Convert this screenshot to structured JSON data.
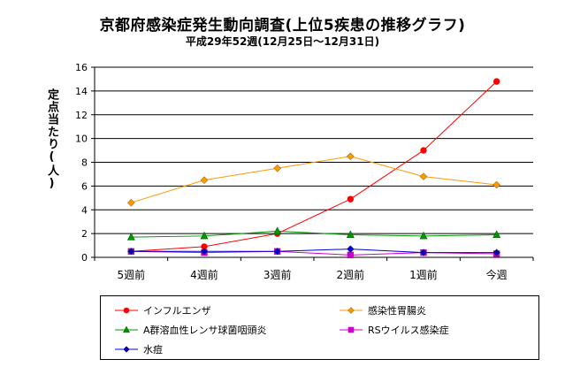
{
  "chart_data": {
    "type": "line",
    "title": "京都府感染症発生動向調査(上位5疾患の推移グラフ)",
    "subtitle": "平成29年52週(12月25日〜12月31日)",
    "ylabel": "定点当たり(人)",
    "xlabel": "",
    "ylim": [
      0,
      16
    ],
    "yticks": [
      0,
      2,
      4,
      6,
      8,
      10,
      12,
      14,
      16
    ],
    "grid": true,
    "legend_position": "bottom",
    "categories": [
      "5週前",
      "4週前",
      "3週前",
      "2週前",
      "1週前",
      "今週"
    ],
    "series": [
      {
        "name": "インフルエンザ",
        "color": "#ff0000",
        "marker": "circle",
        "values": [
          0.5,
          0.9,
          2.0,
          4.9,
          9.0,
          14.8
        ]
      },
      {
        "name": "感染性胃腸炎",
        "color": "#ff9900",
        "marker": "diamond",
        "values": [
          4.6,
          6.5,
          7.5,
          8.5,
          6.8,
          6.1
        ]
      },
      {
        "name": "A群溶血性レンサ球菌咽頭炎",
        "color": "#009900",
        "marker": "triangle",
        "values": [
          1.7,
          1.8,
          2.2,
          1.9,
          1.8,
          1.9
        ]
      },
      {
        "name": "RSウイルス感染症",
        "color": "#cc00cc",
        "marker": "square",
        "values": [
          0.5,
          0.4,
          0.5,
          0.2,
          0.4,
          0.3
        ]
      },
      {
        "name": "水痘",
        "color": "#0000cc",
        "marker": "diamond",
        "values": [
          0.5,
          0.5,
          0.5,
          0.7,
          0.4,
          0.4
        ]
      }
    ]
  }
}
